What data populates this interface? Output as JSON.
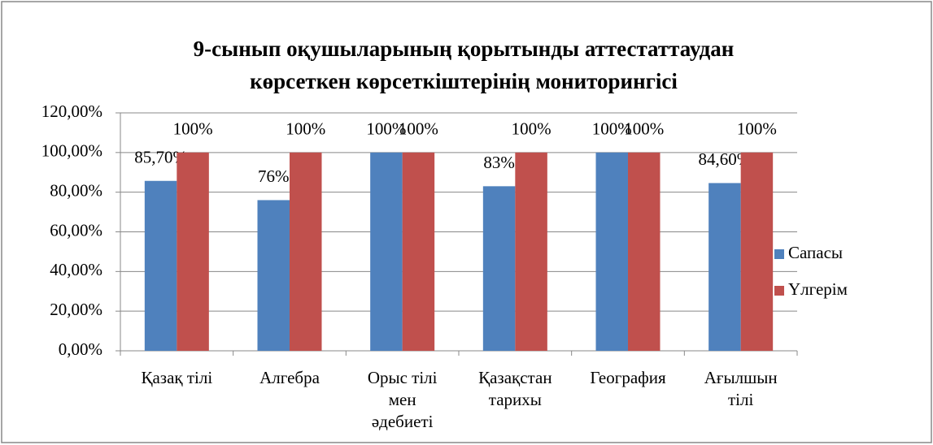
{
  "chart_data": {
    "type": "bar",
    "title": "9-сынып оқушыларының қорытынды аттестаттаудан көрсеткен көрсеткіштерінің мониторингісі",
    "categories": [
      "Қазақ тілі",
      "Алгебра",
      "Орыс тілі мен әдебиеті",
      "Қазақстан тарихы",
      "География",
      "Ағылшын тілі"
    ],
    "series": [
      {
        "name": "Сапасы",
        "color": "#4f81bd",
        "values": [
          85.7,
          76,
          100,
          83,
          100,
          84.6
        ],
        "value_labels": [
          "85,70%",
          "76%",
          "100%",
          "83%",
          "100%",
          "84,60%"
        ]
      },
      {
        "name": "Үлгерім",
        "color": "#c0504d",
        "values": [
          100,
          100,
          100,
          100,
          100,
          100
        ],
        "value_labels": [
          "100%",
          "100%",
          "100%",
          "100%",
          "100%",
          "100%"
        ]
      }
    ],
    "ylim": [
      0,
      120
    ],
    "yticks": [
      {
        "value": 0,
        "label": "0,00%"
      },
      {
        "value": 20,
        "label": "20,00%"
      },
      {
        "value": 40,
        "label": "40,00%"
      },
      {
        "value": 60,
        "label": "60,00%"
      },
      {
        "value": 80,
        "label": "80,00%"
      },
      {
        "value": 100,
        "label": "100,00%"
      },
      {
        "value": 120,
        "label": "120,00%"
      }
    ],
    "grid": true,
    "legend": "right"
  }
}
